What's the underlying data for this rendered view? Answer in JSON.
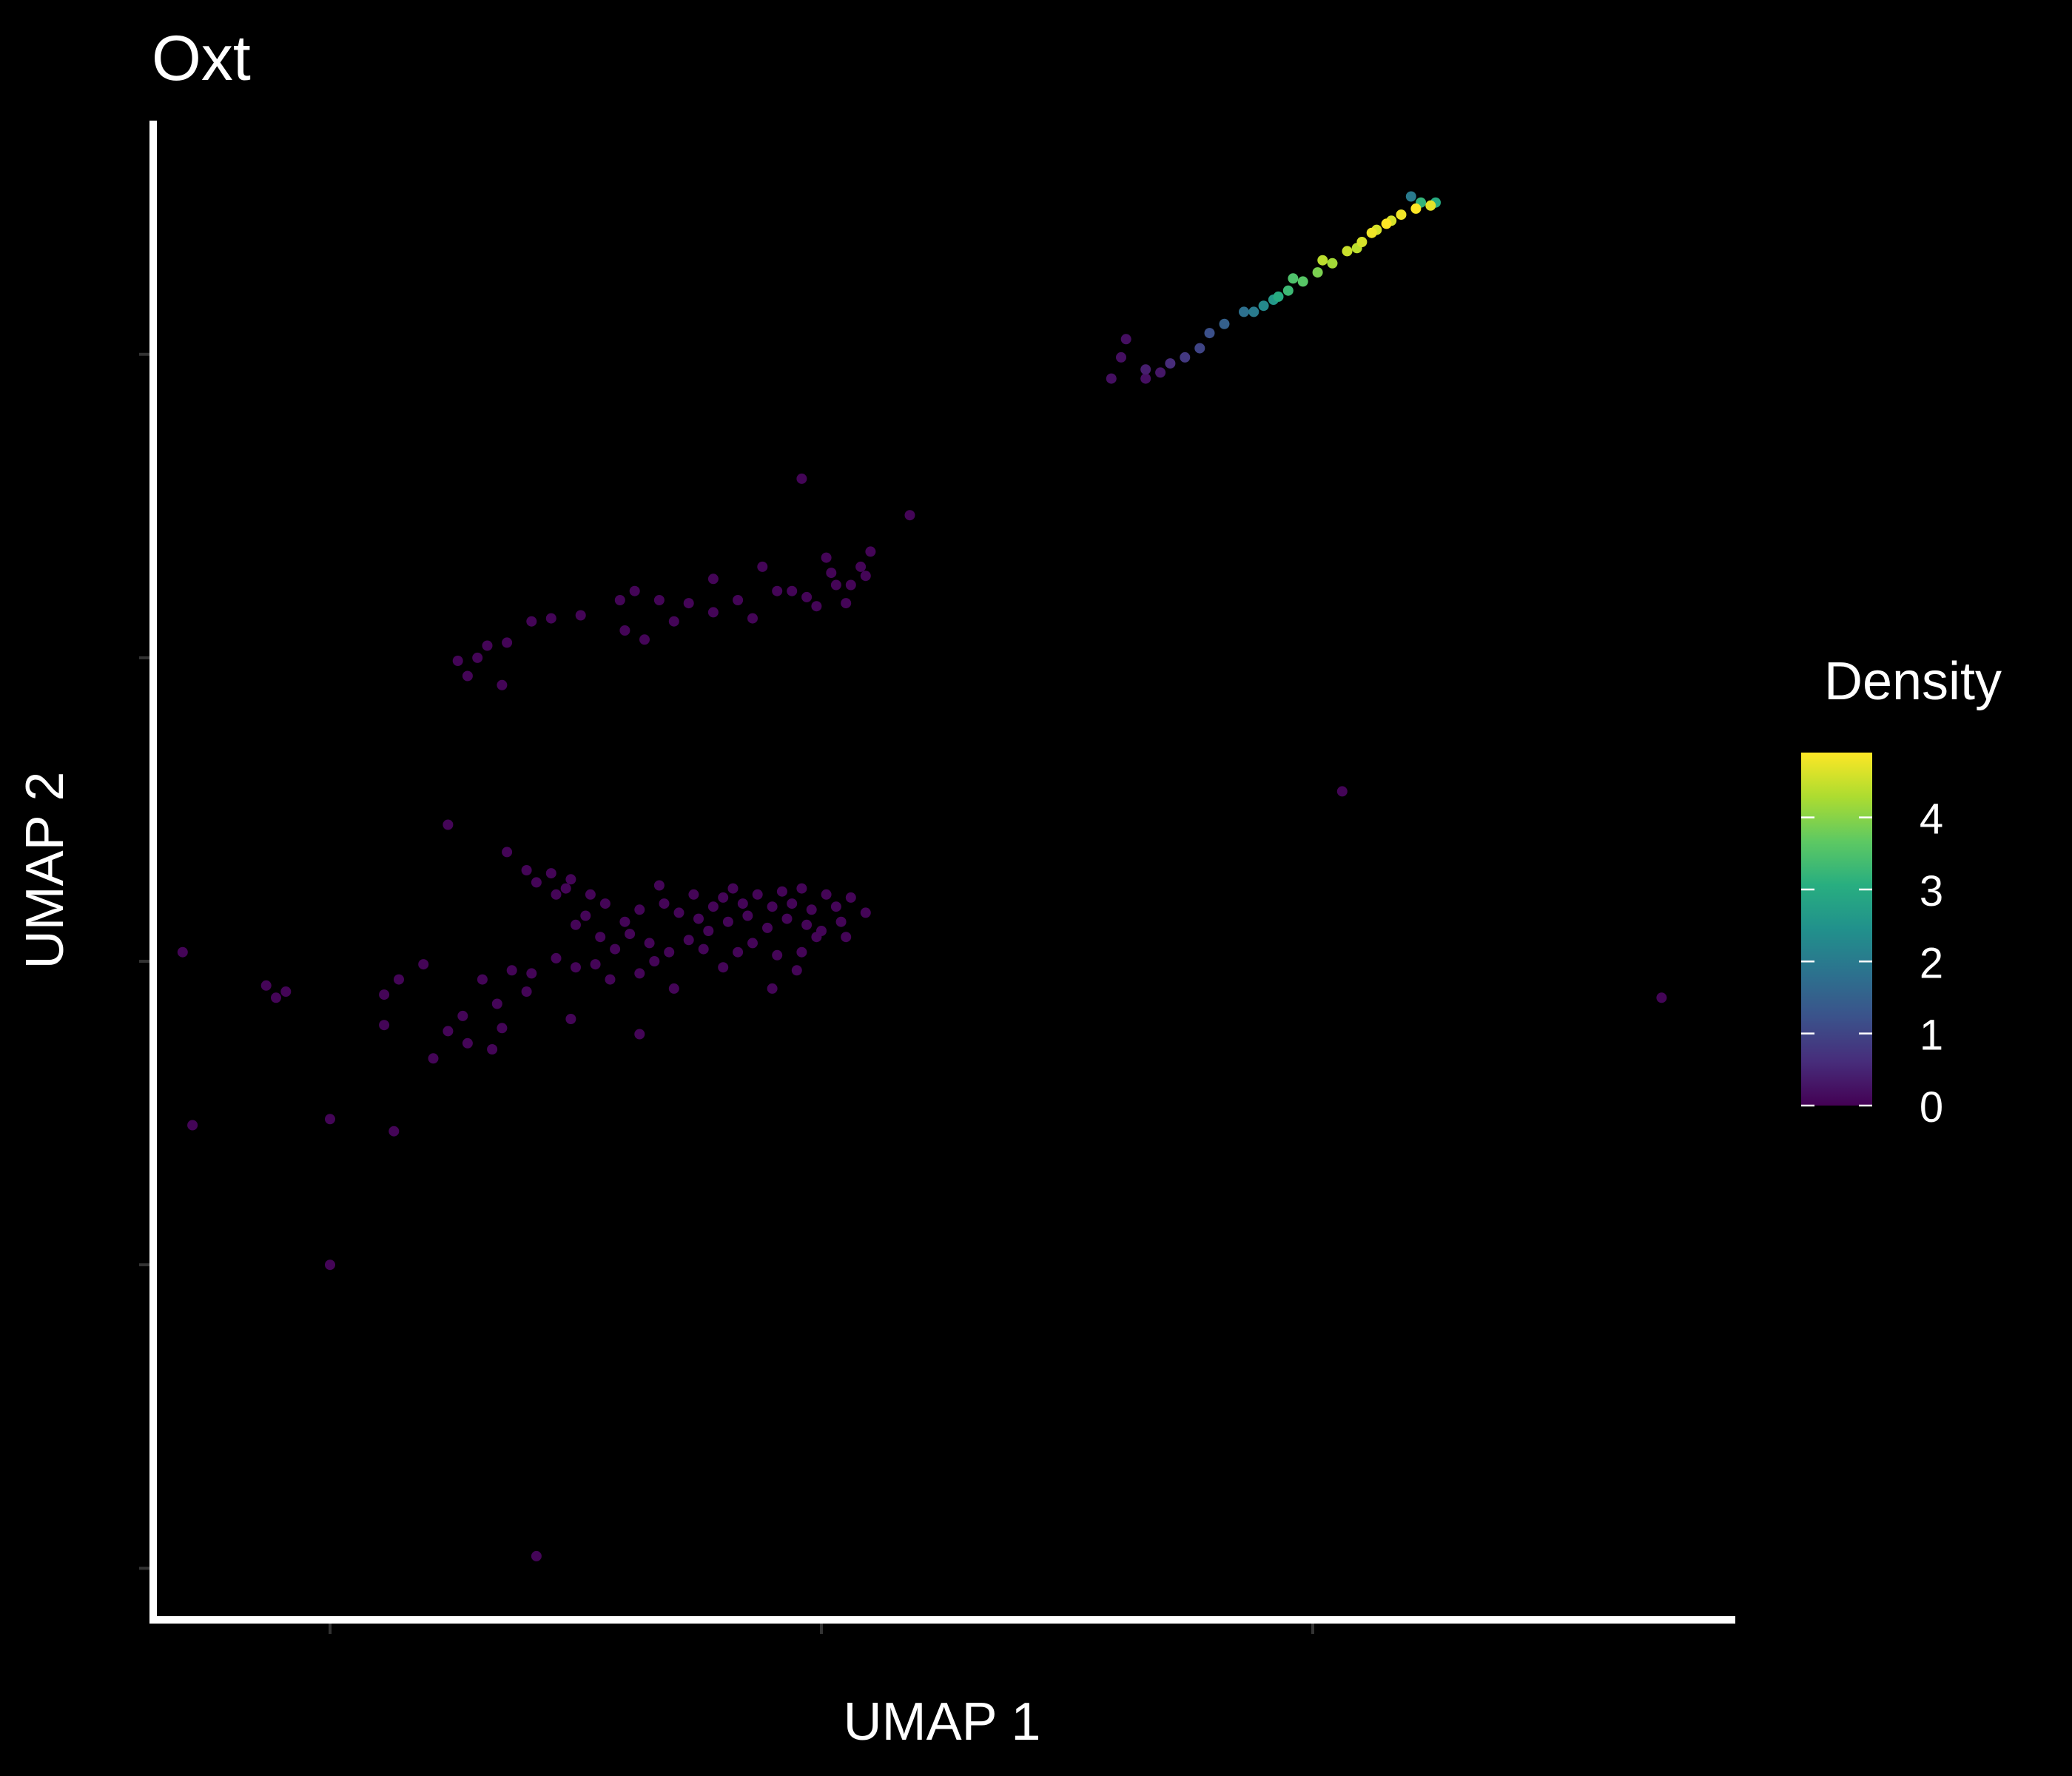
{
  "chart_data": {
    "type": "scatter",
    "title": "Oxt",
    "xlabel": "UMAP 1",
    "ylabel": "UMAP 2",
    "x_ticks": [
      -10,
      0,
      10
    ],
    "y_ticks": [
      -20,
      -10,
      0,
      10,
      20
    ],
    "xlim": [
      -13.6,
      18.6
    ],
    "ylim": [
      -21.7,
      27.7
    ],
    "grid": false,
    "background": "#000000",
    "axis_color": "#ffffff",
    "legend": {
      "title": "Density",
      "position": "right",
      "type": "colorbar",
      "ticks": [
        0,
        1,
        2,
        3,
        4
      ],
      "min": 0,
      "max": 4.9,
      "colormap": [
        "#440154",
        "#472d7b",
        "#3b528b",
        "#2c728e",
        "#21918c",
        "#28ae80",
        "#5ec962",
        "#addc30",
        "#fde725"
      ]
    },
    "points": [
      [
        12.1,
        24.8,
        4.9
      ],
      [
        12.4,
        24.9,
        4.7
      ],
      [
        11.8,
        24.6,
        4.8
      ],
      [
        11.5,
        24.3,
        4.9
      ],
      [
        11.2,
        24.0,
        4.8
      ],
      [
        12.2,
        25.0,
        3.2
      ],
      [
        12.0,
        25.2,
        2.0
      ],
      [
        12.5,
        25.0,
        3.0
      ],
      [
        11.0,
        23.7,
        4.6
      ],
      [
        10.7,
        23.4,
        4.5
      ],
      [
        10.4,
        23.0,
        4.2
      ],
      [
        10.1,
        22.7,
        3.9
      ],
      [
        9.8,
        22.4,
        3.6
      ],
      [
        9.5,
        22.1,
        3.3
      ],
      [
        9.3,
        21.9,
        3.0
      ],
      [
        9.6,
        22.5,
        3.5
      ],
      [
        9.2,
        21.8,
        2.6
      ],
      [
        9.0,
        21.6,
        2.3
      ],
      [
        8.8,
        21.4,
        2.0
      ],
      [
        8.6,
        21.4,
        1.8
      ],
      [
        8.2,
        21.0,
        1.5
      ],
      [
        7.9,
        20.7,
        1.2
      ],
      [
        7.7,
        20.2,
        1.0
      ],
      [
        7.4,
        19.9,
        0.8
      ],
      [
        7.1,
        19.7,
        0.6
      ],
      [
        6.6,
        19.5,
        0.4
      ],
      [
        6.9,
        19.4,
        0.3
      ],
      [
        6.1,
        19.9,
        0.2
      ],
      [
        6.2,
        20.5,
        0.2
      ],
      [
        5.9,
        19.2,
        0.2
      ],
      [
        6.6,
        19.2,
        0.2
      ],
      [
        10.2,
        23.1,
        4.4
      ],
      [
        10.9,
        23.5,
        4.4
      ],
      [
        11.6,
        24.4,
        4.6
      ],
      [
        11.3,
        24.1,
        4.6
      ],
      [
        -0.4,
        15.9,
        0.05
      ],
      [
        1.8,
        14.7,
        0.05
      ],
      [
        0.1,
        13.3,
        0.05
      ],
      [
        -1.2,
        13.0,
        0.05
      ],
      [
        -2.2,
        12.6,
        0.05
      ],
      [
        0.2,
        12.8,
        0.05
      ],
      [
        0.8,
        13.0,
        0.05
      ],
      [
        1.0,
        13.5,
        0.05
      ],
      [
        0.9,
        12.7,
        0.05
      ],
      [
        0.6,
        12.4,
        0.05
      ],
      [
        -0.9,
        12.2,
        0.05
      ],
      [
        -1.7,
        11.9,
        0.05
      ],
      [
        -2.7,
        11.8,
        0.05
      ],
      [
        -3.3,
        11.9,
        0.05
      ],
      [
        -3.8,
        12.2,
        0.05
      ],
      [
        -4.1,
        11.9,
        0.05
      ],
      [
        -4.9,
        11.4,
        0.05
      ],
      [
        -5.5,
        11.3,
        0.05
      ],
      [
        -5.9,
        11.2,
        0.05
      ],
      [
        -6.4,
        10.5,
        0.05
      ],
      [
        -6.8,
        10.4,
        0.05
      ],
      [
        -7.0,
        10.0,
        0.05
      ],
      [
        -7.4,
        9.9,
        0.05
      ],
      [
        -7.2,
        9.4,
        0.05
      ],
      [
        -6.5,
        9.1,
        0.05
      ],
      [
        -1.4,
        11.3,
        0.05
      ],
      [
        -2.2,
        11.5,
        0.05
      ],
      [
        -3.0,
        11.2,
        0.05
      ],
      [
        -3.6,
        10.6,
        0.05
      ],
      [
        -4.0,
        10.9,
        0.05
      ],
      [
        -0.6,
        12.2,
        0.05
      ],
      [
        -0.3,
        12.0,
        0.05
      ],
      [
        0.3,
        12.4,
        0.05
      ],
      [
        0.5,
        11.8,
        0.05
      ],
      [
        -0.1,
        11.7,
        0.05
      ],
      [
        -7.6,
        4.5,
        0.05
      ],
      [
        -6.4,
        3.6,
        0.05
      ],
      [
        -6.0,
        3.0,
        0.05
      ],
      [
        -5.8,
        2.6,
        0.05
      ],
      [
        -5.4,
        2.2,
        0.05
      ],
      [
        -5.2,
        2.4,
        0.05
      ],
      [
        -5.5,
        2.9,
        0.05
      ],
      [
        -5.1,
        2.7,
        0.05
      ],
      [
        -4.7,
        2.2,
        0.05
      ],
      [
        -4.4,
        1.9,
        0.05
      ],
      [
        -4.8,
        1.5,
        0.05
      ],
      [
        -5.0,
        1.2,
        0.05
      ],
      [
        -4.0,
        1.3,
        0.05
      ],
      [
        -3.7,
        1.7,
        0.05
      ],
      [
        -3.3,
        2.5,
        0.05
      ],
      [
        -3.2,
        1.9,
        0.05
      ],
      [
        -2.9,
        1.6,
        0.05
      ],
      [
        -2.5,
        1.4,
        0.05
      ],
      [
        -2.6,
        2.2,
        0.05
      ],
      [
        -2.2,
        1.8,
        0.05
      ],
      [
        -2.0,
        2.1,
        0.05
      ],
      [
        -1.8,
        2.4,
        0.05
      ],
      [
        -1.6,
        1.9,
        0.05
      ],
      [
        -1.3,
        2.2,
        0.05
      ],
      [
        -1.0,
        1.8,
        0.05
      ],
      [
        -0.8,
        2.3,
        0.05
      ],
      [
        -0.6,
        1.9,
        0.05
      ],
      [
        -0.4,
        2.4,
        0.05
      ],
      [
        -0.2,
        1.7,
        0.05
      ],
      [
        0.1,
        2.2,
        0.05
      ],
      [
        0.3,
        1.8,
        0.05
      ],
      [
        0.6,
        2.1,
        0.05
      ],
      [
        0.9,
        1.6,
        0.05
      ],
      [
        -1.1,
        1.1,
        0.05
      ],
      [
        -0.7,
        1.4,
        0.05
      ],
      [
        -0.3,
        1.2,
        0.05
      ],
      [
        0.0,
        1.0,
        0.05
      ],
      [
        0.4,
        1.3,
        0.05
      ],
      [
        -1.5,
        1.5,
        0.05
      ],
      [
        -2.3,
        1.0,
        0.05
      ],
      [
        -2.7,
        0.7,
        0.05
      ],
      [
        -3.1,
        0.3,
        0.05
      ],
      [
        -3.4,
        0.0,
        0.05
      ],
      [
        -3.5,
        0.6,
        0.05
      ],
      [
        -3.9,
        0.9,
        0.05
      ],
      [
        -4.2,
        0.4,
        0.05
      ],
      [
        -4.6,
        -0.1,
        0.05
      ],
      [
        -5.0,
        -0.2,
        0.05
      ],
      [
        -5.4,
        0.1,
        0.05
      ],
      [
        -5.9,
        -0.4,
        0.05
      ],
      [
        -6.3,
        -0.3,
        0.05
      ],
      [
        -6.0,
        -1.0,
        0.05
      ],
      [
        -6.6,
        -1.4,
        0.05
      ],
      [
        -6.9,
        -0.6,
        0.05
      ],
      [
        -6.5,
        -2.2,
        0.05
      ],
      [
        -6.7,
        -2.9,
        0.05
      ],
      [
        -7.3,
        -1.8,
        0.05
      ],
      [
        -7.6,
        -2.3,
        0.05
      ],
      [
        -7.2,
        -2.7,
        0.05
      ],
      [
        -7.9,
        -3.2,
        0.05
      ],
      [
        -8.9,
        -2.1,
        0.05
      ],
      [
        -8.6,
        -0.6,
        0.05
      ],
      [
        -8.1,
        -0.1,
        0.05
      ],
      [
        -3.7,
        -2.4,
        0.05
      ],
      [
        -5.1,
        -1.9,
        0.05
      ],
      [
        -4.3,
        -0.6,
        0.05
      ],
      [
        -3.0,
        -0.9,
        0.05
      ],
      [
        -1.0,
        -0.9,
        0.05
      ],
      [
        -0.4,
        0.3,
        0.05
      ],
      [
        -0.1,
        0.8,
        0.05
      ],
      [
        -1.4,
        0.6,
        0.05
      ],
      [
        -2.0,
        -0.2,
        0.05
      ],
      [
        -3.7,
        -0.4,
        0.05
      ],
      [
        -4.5,
        0.8,
        0.05
      ],
      [
        -1.7,
        0.3,
        0.05
      ],
      [
        -1.9,
        1.3,
        0.05
      ],
      [
        -0.9,
        0.2,
        0.05
      ],
      [
        0.5,
        0.8,
        0.05
      ],
      [
        -2.4,
        0.4,
        0.05
      ],
      [
        -0.5,
        -0.3,
        0.05
      ],
      [
        -13.0,
        0.3,
        0.05
      ],
      [
        -11.3,
        -0.8,
        0.05
      ],
      [
        -11.1,
        -1.2,
        0.05
      ],
      [
        -10.9,
        -1.0,
        0.05
      ],
      [
        -8.9,
        -1.1,
        0.05
      ],
      [
        -12.8,
        -5.4,
        0.05
      ],
      [
        -10.0,
        -5.2,
        0.05
      ],
      [
        -10.0,
        -10.0,
        0.05
      ],
      [
        -8.7,
        -5.6,
        0.05
      ],
      [
        -5.8,
        -19.6,
        0.05
      ],
      [
        10.6,
        5.6,
        0.05
      ],
      [
        17.1,
        -1.2,
        0.05
      ]
    ]
  }
}
